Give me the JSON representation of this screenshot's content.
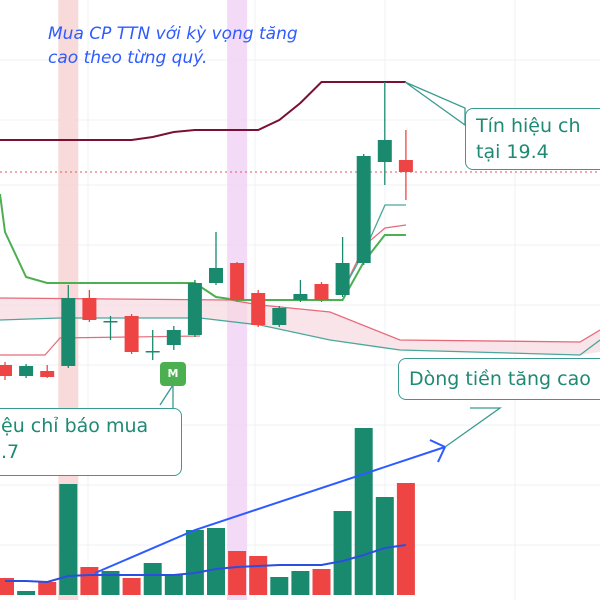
{
  "annotation": {
    "line1": "Mua CP TTN với kỳ vọng tăng",
    "line2": "cao theo từng quý."
  },
  "callouts": {
    "signal_top": {
      "line1": "Tín hiệu ch",
      "line2": "tại 19.4"
    },
    "money_flow": {
      "line1": "Dòng tiền tăng cao"
    },
    "buy_signal": {
      "line1": "ệu chỉ báo mua",
      "line2": ".7"
    }
  },
  "badge": {
    "label": "M",
    "color": "#4caf50"
  },
  "colors": {
    "up": "#1a8a6e",
    "down": "#ef4444",
    "channel_upper": "#7a1034",
    "channel_lower": "#4caf50",
    "volume_ma": "#2a4fe0",
    "trend_arrow": "#2d5bff",
    "reference_line": "#e05a5a"
  },
  "chart_data": {
    "type": "candlestick",
    "title": "",
    "reference_price": 17.6,
    "candles": [
      {
        "o": 13.74,
        "h": 13.8,
        "l": 13.44,
        "c": 13.52
      },
      {
        "o": 13.52,
        "h": 13.76,
        "l": 13.48,
        "c": 13.72
      },
      {
        "o": 13.62,
        "h": 13.74,
        "l": 13.48,
        "c": 13.5
      },
      {
        "o": 13.72,
        "h": 15.34,
        "l": 13.68,
        "c": 15.08
      },
      {
        "o": 15.08,
        "h": 15.24,
        "l": 14.6,
        "c": 14.64
      },
      {
        "o": 14.6,
        "h": 14.72,
        "l": 14.24,
        "c": 14.62
      },
      {
        "o": 14.72,
        "h": 14.76,
        "l": 13.96,
        "c": 14.0
      },
      {
        "o": 14.0,
        "h": 14.44,
        "l": 13.84,
        "c": 14.02
      },
      {
        "o": 14.14,
        "h": 14.52,
        "l": 14.04,
        "c": 14.44
      },
      {
        "o": 14.34,
        "h": 15.44,
        "l": 14.3,
        "c": 15.38
      },
      {
        "o": 15.38,
        "h": 16.4,
        "l": 15.34,
        "c": 15.68
      },
      {
        "o": 15.78,
        "h": 15.8,
        "l": 15.0,
        "c": 15.04
      },
      {
        "o": 15.18,
        "h": 15.24,
        "l": 14.5,
        "c": 14.54
      },
      {
        "o": 14.54,
        "h": 14.92,
        "l": 14.5,
        "c": 14.88
      },
      {
        "o": 15.04,
        "h": 15.44,
        "l": 15.0,
        "c": 15.16
      },
      {
        "o": 15.36,
        "h": 15.4,
        "l": 15.0,
        "c": 15.04
      },
      {
        "o": 15.14,
        "h": 16.3,
        "l": 15.1,
        "c": 15.78
      },
      {
        "o": 15.78,
        "h": 17.96,
        "l": 15.74,
        "c": 17.92
      },
      {
        "o": 17.8,
        "h": 19.4,
        "l": 17.34,
        "c": 18.24
      },
      {
        "o": 17.84,
        "h": 18.44,
        "l": 17.04,
        "c": 17.6
      }
    ],
    "volume": [
      17,
      4,
      13,
      111,
      28,
      24,
      17,
      32,
      20,
      65,
      67,
      44,
      39,
      18,
      24,
      26,
      84,
      167,
      98,
      112
    ],
    "volume_ma": [
      14,
      14,
      13,
      19,
      20,
      20,
      20,
      20,
      20,
      22,
      26,
      28,
      29,
      30,
      30,
      30,
      34,
      40,
      47,
      50
    ],
    "channel_upper": [
      18.24,
      18.24,
      18.24,
      18.24,
      18.24,
      18.24,
      18.24,
      18.3,
      18.4,
      18.44,
      18.44,
      18.44,
      18.44,
      18.64,
      18.98,
      19.4,
      19.4,
      19.4,
      19.4,
      19.4
    ],
    "channel_lower": [
      16.4,
      15.5,
      15.38,
      15.38,
      15.38,
      15.38,
      15.38,
      15.38,
      15.38,
      15.38,
      15.1,
      15.04,
      15.04,
      15.04,
      15.04,
      15.04,
      15.04,
      15.8,
      16.34,
      16.34
    ],
    "highlighted_bars": [
      3,
      11
    ]
  }
}
